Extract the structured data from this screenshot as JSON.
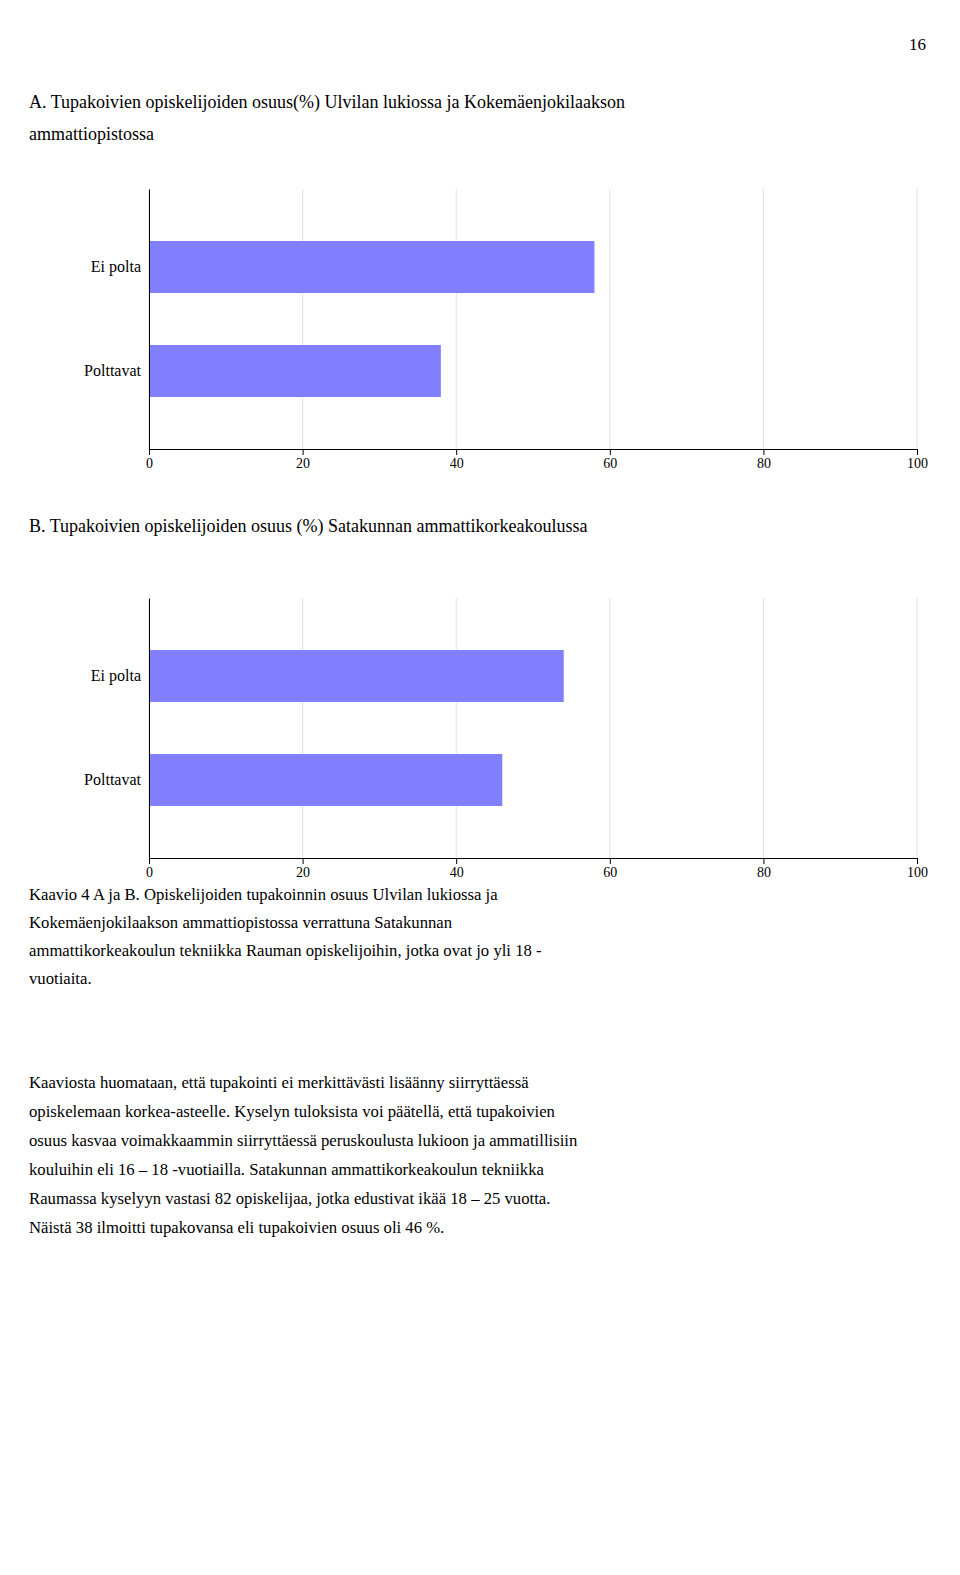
{
  "page_number": "16",
  "chart_data": [
    {
      "type": "bar",
      "orientation": "horizontal",
      "title": "A. Tupakoivien opiskelijoiden osuus(%) Ulvilan lukiossa ja Kokemäenjokilaakson\nammattiopistossa",
      "categories": [
        "Polttavat",
        "Ei polta"
      ],
      "values": [
        38,
        58
      ],
      "color": "#8080FF",
      "xlim": [
        0,
        100
      ],
      "xticks": [
        0,
        20,
        40,
        60,
        80,
        100
      ],
      "grid": true
    },
    {
      "type": "bar",
      "orientation": "horizontal",
      "title": "B. Tupakoivien opiskelijoiden osuus (%) Satakunnan ammattikorkeakoulussa",
      "categories": [
        "Polttavat",
        "Ei polta"
      ],
      "values": [
        46,
        54
      ],
      "color": "#8080FF",
      "xlim": [
        0,
        100
      ],
      "xticks": [
        0,
        20,
        40,
        60,
        80,
        100
      ],
      "grid": true
    }
  ],
  "caption": "Kaavio 4 A ja B. Opiskelijoiden tupakoinnin osuus Ulvilan lukiossa ja\nKokemäenjokilaakson ammattiopistossa verrattuna Satakunnan\nammattikorkeakoulun tekniikka Rauman opiskelijoihin, jotka ovat jo yli 18 -\nvuotiaita.",
  "paragraph": [
    "Kaaviosta huomataan, että tupakointi ei merkittävästi lisäänny siirryttäessä",
    "opiskelemaan korkea-asteelle. Kyselyn tuloksista voi päätellä, että tupakoivien",
    "osuus kasvaa voimakkaammin siirryttäessä peruskoulusta lukioon ja ammatillisiin",
    "kouluihin eli 16 – 18 -vuotiailla. Satakunnan ammattikorkeakoulun tekniikka",
    "Raumassa kyselyyn vastasi 82 opiskelijaa, jotka edustivat ikää 18 – 25 vuotta.",
    "Näistä 38 ilmoitti tupakovansa eli tupakoivien osuus oli 46 %."
  ]
}
